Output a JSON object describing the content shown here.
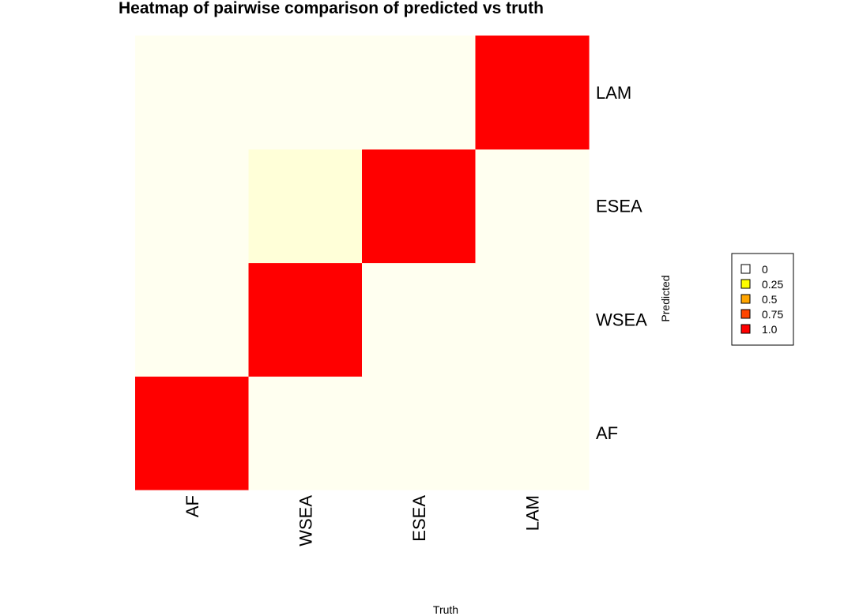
{
  "chart_data": {
    "type": "heatmap",
    "title": "Heatmap of pairwise comparison of predicted vs truth",
    "xlabel": "Truth",
    "ylabel": "Predicted",
    "x_categories": [
      "AF",
      "WSEA",
      "ESEA",
      "LAM"
    ],
    "y_categories": [
      "AF",
      "WSEA",
      "ESEA",
      "LAM"
    ],
    "values": [
      [
        1.0,
        0.0,
        0.0,
        0.0
      ],
      [
        0.0,
        1.0,
        0.0,
        0.0
      ],
      [
        0.0,
        0.06,
        1.0,
        0.0
      ],
      [
        0.0,
        0.0,
        0.0,
        1.0
      ]
    ],
    "color_low": "#fffff0",
    "color_high": "#ff0000",
    "legend": {
      "placement": "right",
      "entries": [
        {
          "label": "0",
          "color": "#ffffff"
        },
        {
          "label": "0.25",
          "color": "#ffff00"
        },
        {
          "label": "0.5",
          "color": "#ffa500"
        },
        {
          "label": "0.75",
          "color": "#ff4500"
        },
        {
          "label": "1.0",
          "color": "#ff0000"
        }
      ]
    }
  }
}
